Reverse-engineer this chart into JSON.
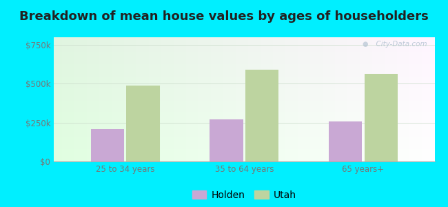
{
  "title": "Breakdown of mean house values by ages of householders",
  "categories": [
    "25 to 34 years",
    "35 to 64 years",
    "65 years+"
  ],
  "holden_values": [
    210000,
    270000,
    258000
  ],
  "utah_values": [
    490000,
    590000,
    563000
  ],
  "holden_color": "#c9a8d4",
  "utah_color": "#bdd4a0",
  "background_outer": "#00efff",
  "yticks": [
    0,
    250000,
    500000,
    750000
  ],
  "ytick_labels": [
    "$0",
    "$250k",
    "$500k",
    "$750k"
  ],
  "ylim": [
    0,
    800000
  ],
  "bar_width": 0.28,
  "legend_holden": "Holden",
  "legend_utah": "Utah",
  "title_fontsize": 13,
  "tick_fontsize": 8.5,
  "legend_fontsize": 10,
  "watermark_text": "  City-Data.com"
}
